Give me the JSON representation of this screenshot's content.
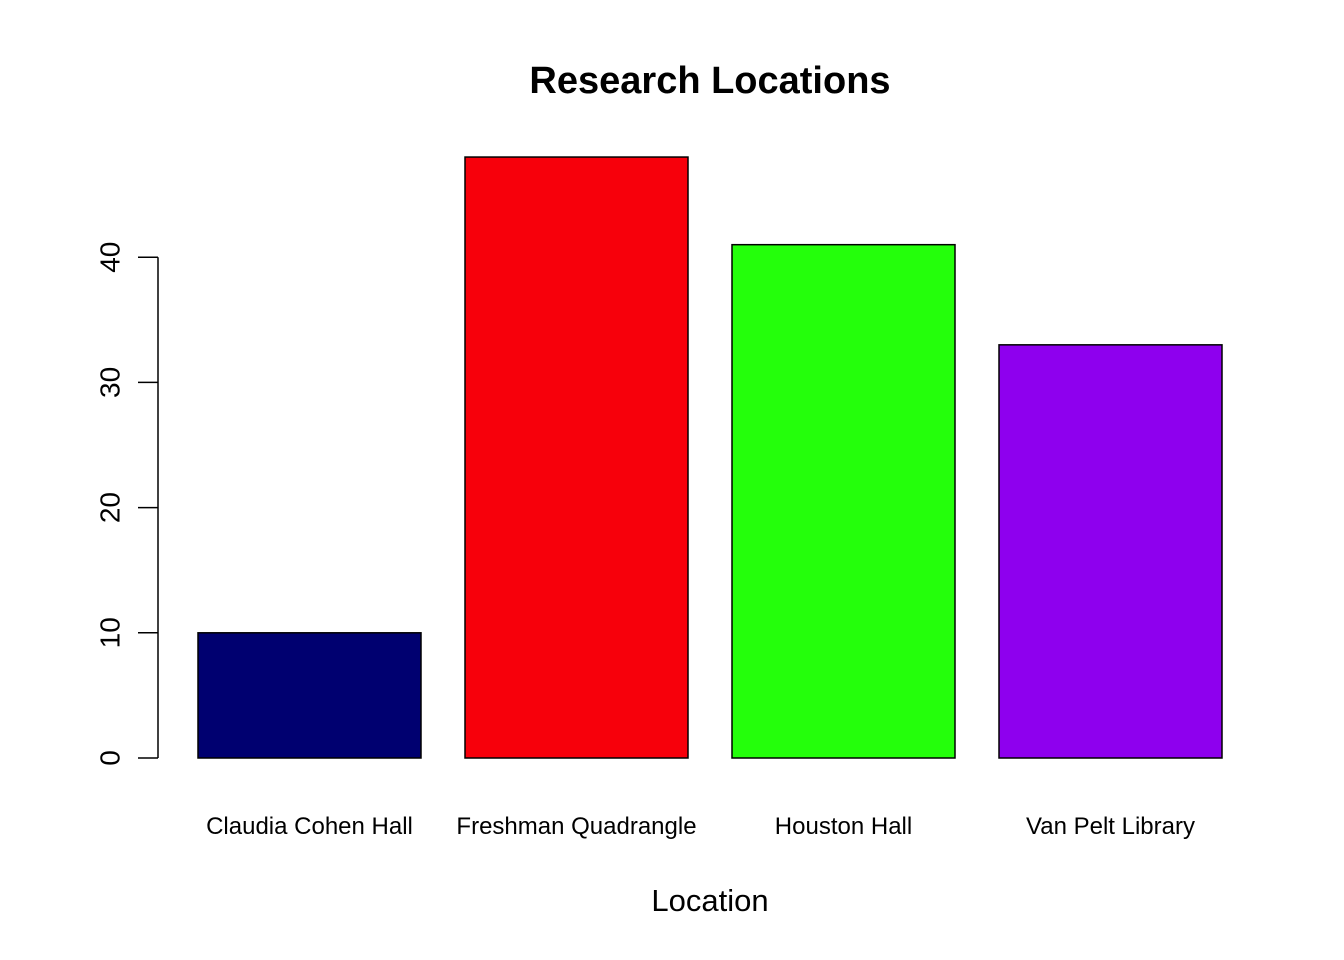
{
  "chart_data": {
    "type": "bar",
    "title": "Research Locations",
    "xlabel": "Location",
    "ylabel": "",
    "categories": [
      "Claudia Cohen Hall",
      "Freshman Quadrangle",
      "Houston Hall",
      "Van Pelt Library"
    ],
    "values": [
      10,
      48,
      41,
      33
    ],
    "colors": [
      "#000070",
      "#f7000b",
      "#24ff0b",
      "#8e00ee"
    ],
    "yticks": [
      0,
      10,
      20,
      30,
      40
    ],
    "ylim": [
      0,
      48
    ],
    "grid": false,
    "legend": "none"
  }
}
